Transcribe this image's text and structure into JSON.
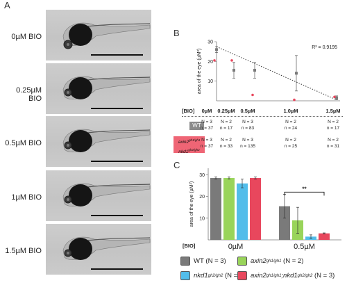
{
  "panel_a": {
    "letter": "A",
    "rows": [
      {
        "label": "0µM BIO"
      },
      {
        "label": "0.25µM BIO"
      },
      {
        "label": "0.5µM BIO"
      },
      {
        "label": "1µM BIO"
      },
      {
        "label": "1.5µM BIO"
      }
    ]
  },
  "panel_b": {
    "letter": "B",
    "r2": "R² = 0.9195",
    "bio_label": "[BIO]",
    "concentrations": [
      "0µM",
      "0.25µM",
      "0.5µM",
      "1.0µM",
      "1.5µM"
    ],
    "wt_label": "WT",
    "mut_label_1": "axin2",
    "mut_label_1_sup": "gh1/gh1",
    "mut_label_2": "nkd1",
    "mut_label_2_sup": "gh2/gh2",
    "wt_counts": [
      {
        "N": "N = 3",
        "n": "n = 37"
      },
      {
        "N": "N = 2",
        "n": "n = 17"
      },
      {
        "N": "N = 3",
        "n": "n = 83"
      },
      {
        "N": "N = 2",
        "n": "n = 24"
      },
      {
        "N": "N = 2",
        "n": "n = 17"
      }
    ],
    "mut_counts": [
      {
        "N": "N = 3",
        "n": "n = 37"
      },
      {
        "N": "N = 2",
        "n": "n = 33"
      },
      {
        "N": "N = 3",
        "n": "n = 135"
      },
      {
        "N": "N = 2",
        "n": "n = 25"
      },
      {
        "N": "N = 2",
        "n": "n = 31"
      }
    ]
  },
  "panel_c": {
    "letter": "C",
    "bio_label": "[BIO]",
    "sig": "**",
    "legend": [
      {
        "label": "WT",
        "sup": "",
        "suffix": " (N = 3)",
        "color": "#7a7a7a"
      },
      {
        "label": "axin2",
        "sup": "gh1/gh1",
        "suffix": " (N = 2)",
        "color": "#99d45a"
      },
      {
        "label": "nkd1",
        "sup": "gh2/gh2",
        "suffix": " (N = 2)",
        "color": "#52bdea"
      },
      {
        "label": "axin2",
        "sup": "gh1/gh1",
        "mid": ";nkd1",
        "sup2": "gh2/gh2",
        "suffix": " (N = 3)",
        "color": "#e8475d"
      }
    ]
  },
  "chart_data": [
    {
      "type": "scatter",
      "title": "",
      "xlabel": "",
      "ylabel": "area of the eye (µM²)",
      "ylim": [
        0,
        30
      ],
      "yticks": [
        10,
        20,
        30
      ],
      "x": [
        0,
        0.25,
        0.5,
        1.0,
        1.5
      ],
      "series": [
        {
          "name": "WT",
          "color": "#7a7a7a",
          "values": [
            26,
            15.5,
            15.5,
            14,
            1.5
          ],
          "error": [
            1.5,
            4,
            4,
            9,
            1
          ]
        },
        {
          "name": "axin2;nkd1",
          "color": "#e8475d",
          "values": [
            20.5,
            20.5,
            3,
            0.5,
            2
          ],
          "error": [
            0,
            0,
            0,
            0,
            0
          ]
        }
      ],
      "trendline": {
        "from": [
          0,
          27.5
        ],
        "to": [
          1.5,
          0.5
        ],
        "style": "dotted"
      }
    },
    {
      "type": "bar",
      "title": "",
      "xlabel": "[BIO]",
      "ylabel": "area of the eye (µM²)",
      "ylim": [
        0,
        33
      ],
      "yticks": [
        10,
        20,
        30
      ],
      "categories": [
        "0µM",
        "0.5µM"
      ],
      "series": [
        {
          "name": "WT",
          "color": "#7a7a7a",
          "values": [
            28.5,
            15.5
          ],
          "error": [
            0.5,
            5.5
          ]
        },
        {
          "name": "axin2",
          "color": "#99d45a",
          "values": [
            28.5,
            9
          ],
          "error": [
            0.5,
            6
          ]
        },
        {
          "name": "nkd1",
          "color": "#52bdea",
          "values": [
            26,
            1.5
          ],
          "error": [
            2,
            0.8
          ]
        },
        {
          "name": "axin2;nkd1",
          "color": "#e8475d",
          "values": [
            28.5,
            3
          ],
          "error": [
            0.5,
            0.2
          ]
        }
      ]
    }
  ]
}
